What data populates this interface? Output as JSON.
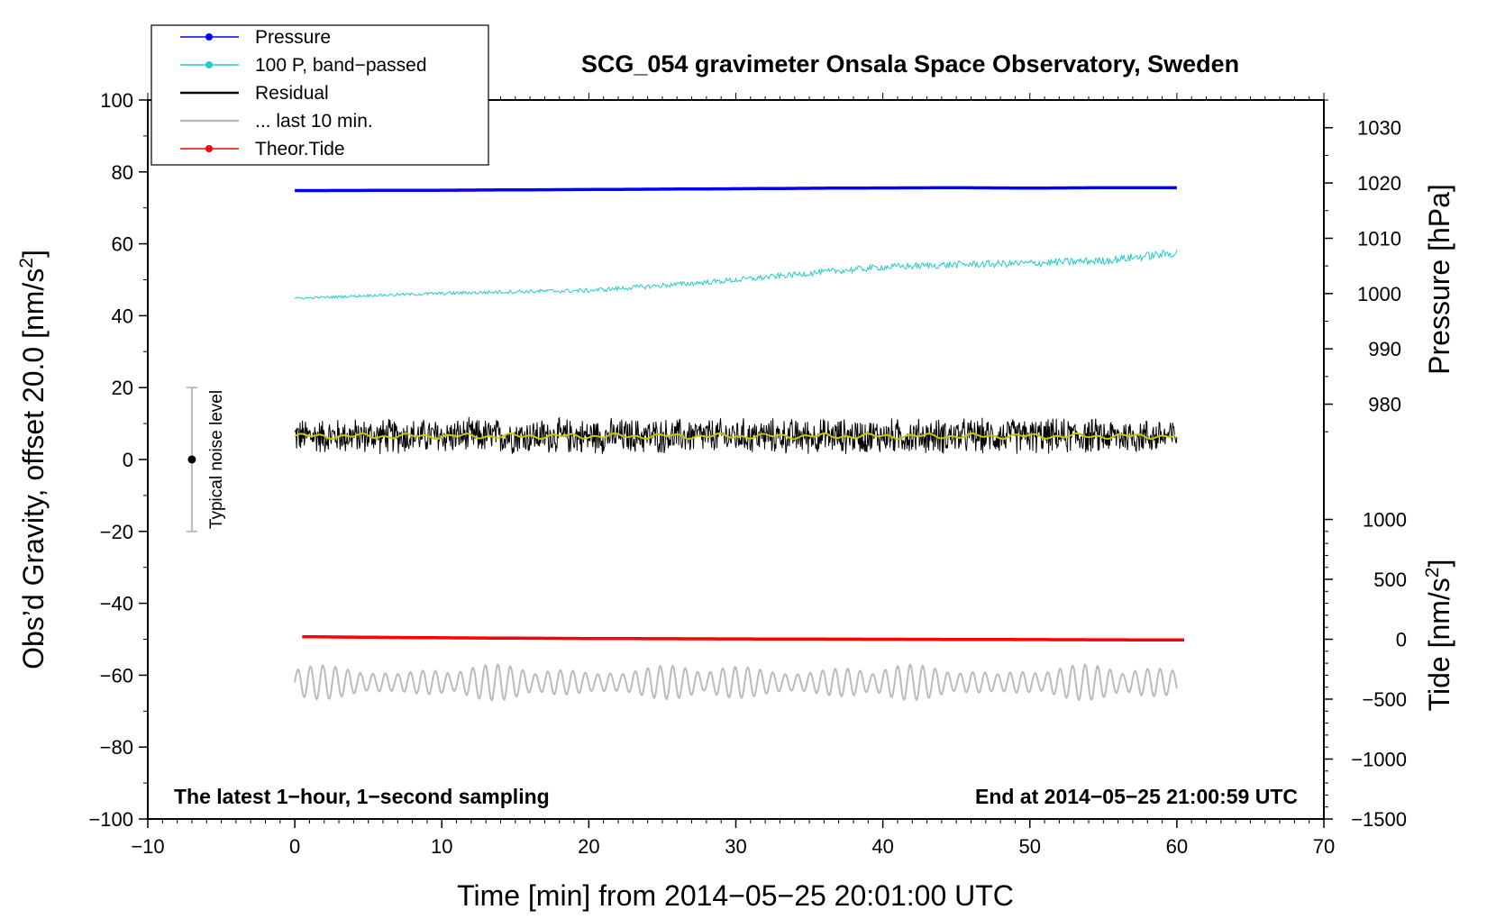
{
  "chart_data": {
    "type": "line",
    "title": "SCG_054 gravimeter Onsala Space Observatory, Sweden",
    "xlabel": "Time [min] from 2014−05−25 20:01:00 UTC",
    "ylabel_left": "Obs’d Gravity, offset 20.0 [nm/s",
    "ylabel_left_sup": "2",
    "ylabel_left_end": "]",
    "ylabel_right_pressure": "Pressure [hPa]",
    "ylabel_right_tide": "Tide [nm/s",
    "ylabel_right_tide_sup": "2",
    "ylabel_right_tide_end": "]",
    "xlim": [
      -10,
      70
    ],
    "ylim": [
      -100,
      100
    ],
    "x_ticks": [
      -10,
      0,
      10,
      20,
      30,
      40,
      50,
      60,
      70
    ],
    "x_tick_labels": [
      "−10",
      "0",
      "10",
      "20",
      "30",
      "40",
      "50",
      "60",
      "70"
    ],
    "y_ticks": [
      100,
      80,
      60,
      40,
      20,
      0,
      -20,
      -40,
      -60,
      -80,
      -100
    ],
    "y_tick_labels": [
      "100",
      "80",
      "60",
      "40",
      "20",
      "0",
      "−20",
      "−40",
      "−60",
      "−80",
      "−100"
    ],
    "pressure_axis": {
      "ticks": [
        1030,
        1020,
        1010,
        1000,
        990,
        980
      ],
      "tick_labels": [
        "1030",
        "1020",
        "1010",
        "1000",
        "990",
        "980"
      ],
      "ref_value": 1030,
      "ref_plot_y": 92.3,
      "per_hpa": 1.538
    },
    "tide_axis": {
      "ticks": [
        1000,
        500,
        0,
        -500,
        -1000,
        -1500
      ],
      "tick_labels": [
        "1000",
        "500",
        "0",
        "−500",
        "−1000",
        "−1500"
      ],
      "ref_value": 0,
      "ref_plot_y": -50.0,
      "per_unit": 0.03333
    },
    "legend": [
      {
        "label": "Pressure",
        "color": "#0000ff",
        "marker": true
      },
      {
        "label": "100 P, band−passed",
        "color": "#22cccc",
        "marker": true
      },
      {
        "label": "Residual",
        "color": "#000000",
        "marker": false
      },
      {
        "label": "... last 10 min.",
        "color": "#bbbbbb",
        "marker": false
      },
      {
        "label": "Theor.Tide",
        "color": "#ff0000",
        "marker": true
      }
    ],
    "series": [
      {
        "name": "Pressure",
        "color": "#0000ff",
        "x": [
          0,
          10,
          20,
          29.5,
          37,
          45,
          50,
          55,
          60
        ],
        "y": [
          74.8,
          74.9,
          75.1,
          75.3,
          75.5,
          75.6,
          75.5,
          75.6,
          75.6
        ]
      },
      {
        "name": "100 P, band-passed",
        "color": "#22cccc",
        "x": [
          0,
          5,
          10,
          15,
          20,
          25,
          30,
          35,
          40,
          45,
          50,
          55,
          60
        ],
        "y": [
          44.8,
          45.6,
          46.2,
          46.7,
          47.0,
          48.4,
          49.9,
          51.8,
          53.5,
          54.2,
          54.6,
          55.3,
          57.5
        ]
      },
      {
        "name": "Residual",
        "color": "#000000",
        "mean": 6.5,
        "amplitude": 5.5,
        "x_start": 0,
        "x_end": 60
      },
      {
        "name": "Residual smoothed",
        "color": "#c8c800",
        "mean": 6.5,
        "amplitude": 0.8,
        "x_start": 0,
        "x_end": 60
      },
      {
        "name": "Theor.Tide",
        "color": "#ff0000",
        "x": [
          0.5,
          10,
          20,
          30,
          40,
          50,
          60.5
        ],
        "y": [
          -49.3,
          -49.6,
          -49.8,
          -49.9,
          -50.0,
          -50.1,
          -50.2
        ]
      },
      {
        "name": "... last 10 min.",
        "color": "#bbbbbb",
        "mean": -62,
        "amplitude": 5,
        "x_start": 0,
        "x_end": 60
      }
    ],
    "noise_bar": {
      "x": -7,
      "center": 0,
      "low": -20,
      "high": 20,
      "label": "Typical noise level"
    },
    "footnote_left": "The latest 1−hour, 1−second sampling",
    "footnote_right": "End at 2014−05−25 21:00:59 UTC"
  }
}
